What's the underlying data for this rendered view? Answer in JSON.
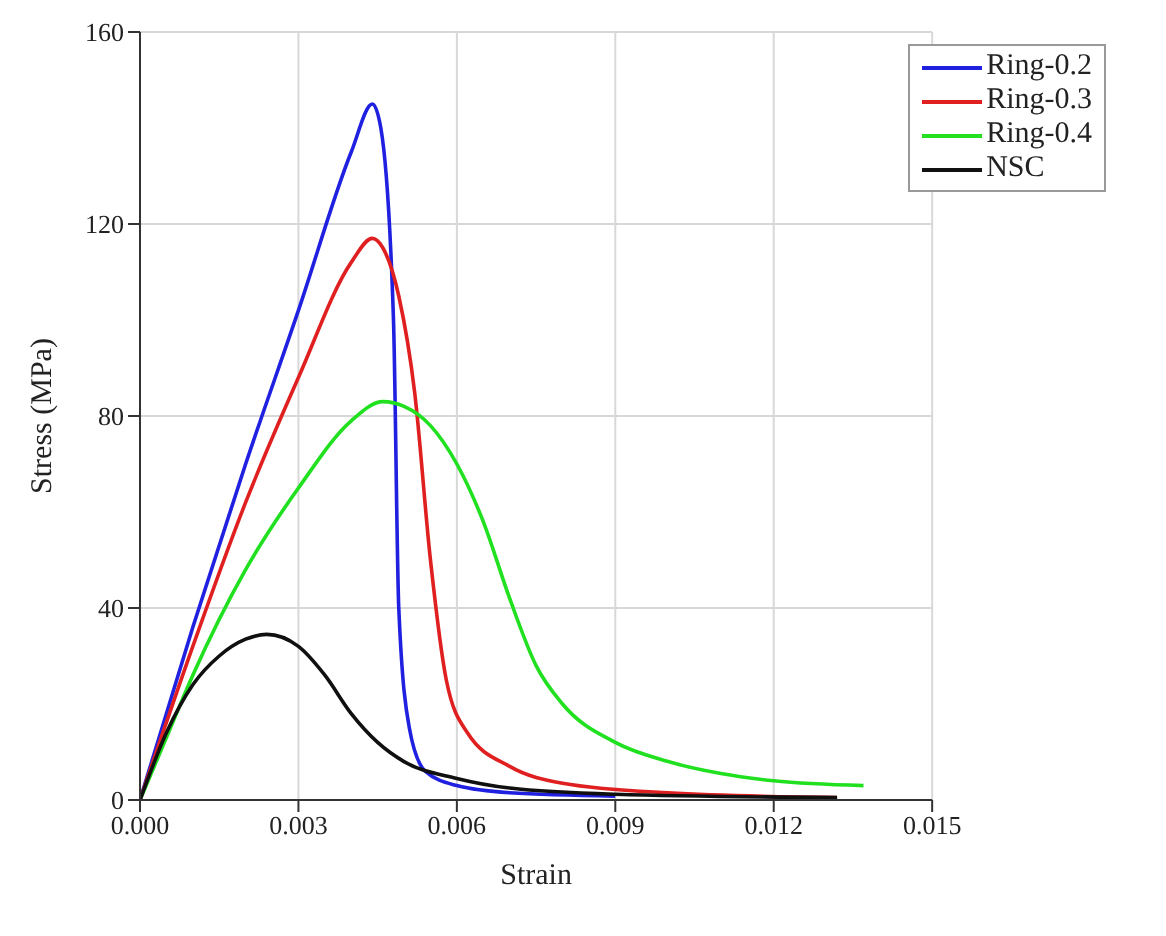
{
  "chart_data": {
    "type": "line",
    "xlabel": "Strain",
    "ylabel": "Stress (MPa)",
    "xlim": [
      0,
      0.015
    ],
    "xticks": [
      {
        "value": 0,
        "label": "0.000"
      },
      {
        "value": 0.003,
        "label": "0.003"
      },
      {
        "value": 0.006,
        "label": "0.006"
      },
      {
        "value": 0.009,
        "label": "0.009"
      },
      {
        "value": 0.012,
        "label": "0.012"
      },
      {
        "value": 0.015,
        "label": "0.015"
      }
    ],
    "ylim": [
      0,
      160
    ],
    "yticks": [
      0,
      40,
      80,
      120,
      160
    ],
    "grid": true,
    "legend": "top right",
    "marker": "none",
    "line_style": "solid",
    "series": [
      {
        "name": "Ring-0.2",
        "color": "#2020e0",
        "x": [
          0,
          0.001,
          0.002,
          0.003,
          0.004,
          0.0044,
          0.00456,
          0.0048,
          0.0049,
          0.0051,
          0.0054,
          0.006,
          0.007,
          0.009
        ],
        "values": [
          0,
          36,
          70,
          102,
          135,
          145,
          140,
          100,
          40,
          15,
          6,
          3,
          1.5,
          0.8
        ]
      },
      {
        "name": "Ring-0.3",
        "color": "#e02020",
        "x": [
          0,
          0.001,
          0.002,
          0.003,
          0.004,
          0.0044,
          0.0046,
          0.0049,
          0.0052,
          0.0055,
          0.0058,
          0.0062,
          0.007,
          0.008,
          0.01,
          0.0132
        ],
        "values": [
          0,
          32,
          62,
          88,
          112,
          117,
          115,
          105,
          85,
          50,
          25,
          14,
          7,
          3.5,
          1.5,
          0.5
        ]
      },
      {
        "name": "Ring-0.4",
        "color": "#20e020",
        "x": [
          0,
          0.0005,
          0.001,
          0.002,
          0.003,
          0.004,
          0.0046,
          0.005,
          0.0055,
          0.006,
          0.0065,
          0.007,
          0.0075,
          0.008,
          0.009,
          0.01,
          0.011,
          0.012,
          0.0137
        ],
        "values": [
          0,
          13,
          26,
          48,
          65,
          79,
          83,
          82,
          78,
          70,
          58,
          42,
          28,
          20,
          12,
          8,
          5.5,
          4,
          3
        ]
      },
      {
        "name": "NSC",
        "color": "#101010",
        "x": [
          0,
          0.0005,
          0.001,
          0.0015,
          0.002,
          0.0024,
          0.003,
          0.0035,
          0.004,
          0.0045,
          0.005,
          0.006,
          0.007,
          0.009,
          0.0132
        ],
        "values": [
          0,
          14,
          24,
          30,
          33.5,
          34.5,
          32,
          26,
          18,
          12,
          8,
          4.5,
          2.5,
          1.2,
          0.5
        ]
      }
    ]
  }
}
